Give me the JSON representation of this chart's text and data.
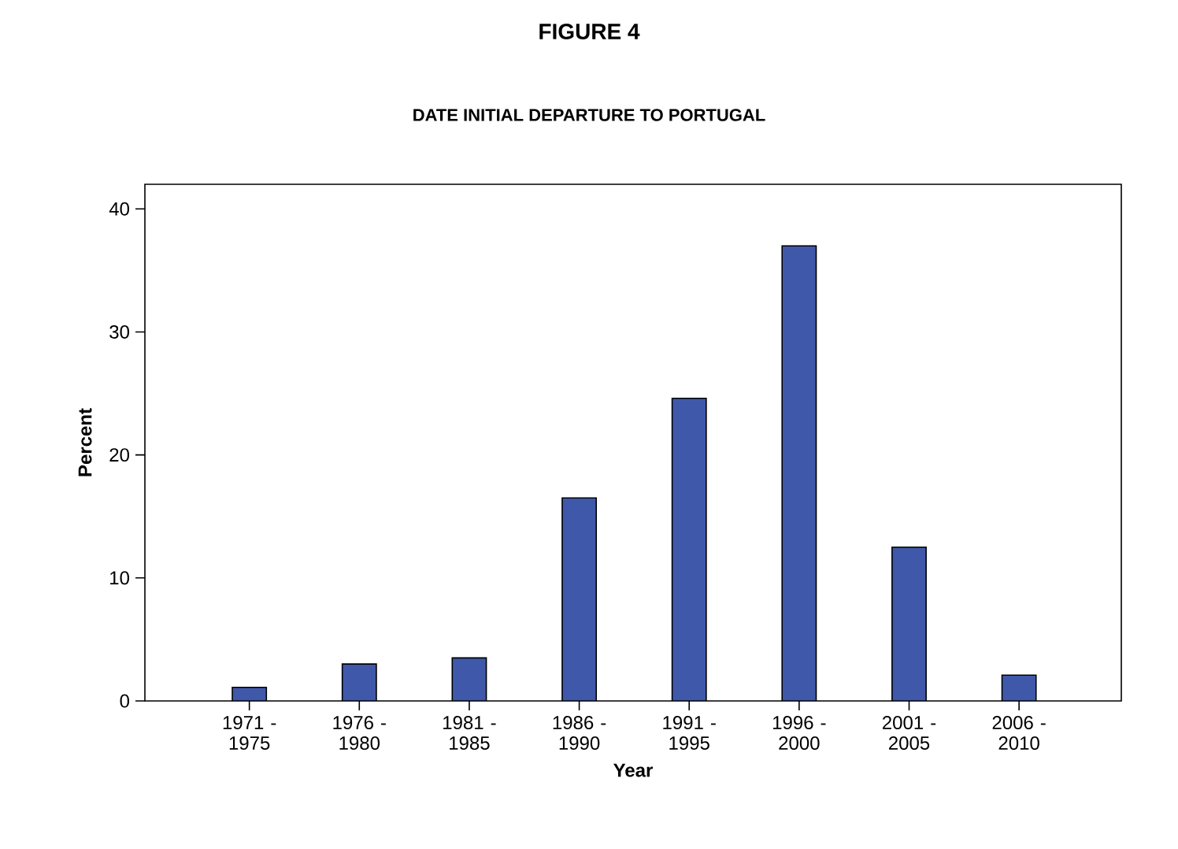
{
  "chart_data": {
    "type": "bar",
    "title": "FIGURE 4",
    "subtitle": "DATE INITIAL DEPARTURE TO PORTUGAL",
    "xlabel": "Year",
    "ylabel": "Percent",
    "categories": [
      "1971 - 1975",
      "1976 - 1980",
      "1981 - 1985",
      "1986 - 1990",
      "1991 - 1995",
      "1996 - 2000",
      "2001 - 2005",
      "2006 - 2010"
    ],
    "values": [
      1.1,
      3.0,
      3.5,
      16.5,
      24.6,
      37.0,
      12.5,
      2.1
    ],
    "color": "#3f58aa",
    "ylim": [
      0,
      42
    ],
    "yticks": [
      0,
      10,
      20,
      30,
      40
    ],
    "grid": false
  }
}
